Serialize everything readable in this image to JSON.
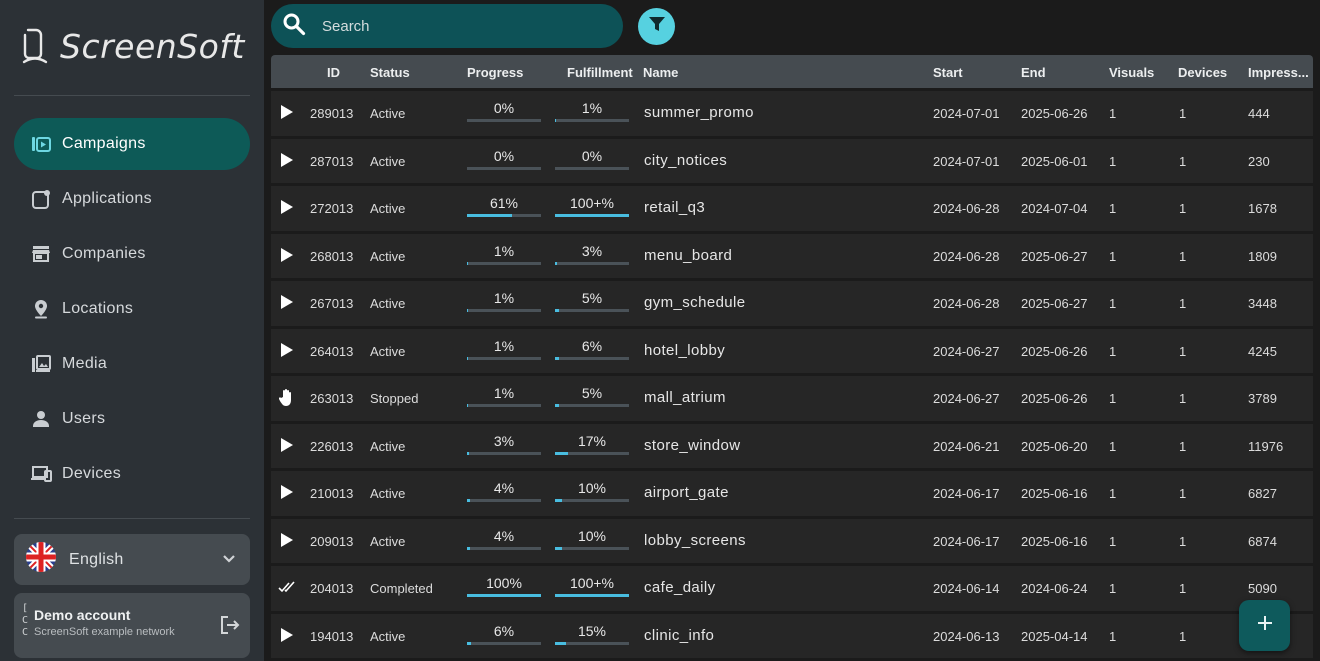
{
  "app": {
    "title": "ScreenSoft"
  },
  "sidebar": {
    "items": [
      {
        "label": "Campaigns",
        "icon": "campaigns-icon",
        "active": true
      },
      {
        "label": "Applications",
        "icon": "applications-icon",
        "active": false
      },
      {
        "label": "Companies",
        "icon": "store-icon",
        "active": false
      },
      {
        "label": "Locations",
        "icon": "location-pin-icon",
        "active": false
      },
      {
        "label": "Media",
        "icon": "media-icon",
        "active": false
      },
      {
        "label": "Users",
        "icon": "person-icon",
        "active": false
      },
      {
        "label": "Devices",
        "icon": "devices-icon",
        "active": false
      }
    ],
    "language": {
      "label": "English",
      "icon": "uk-flag-icon"
    },
    "account": {
      "name": "Demo account",
      "subtitle": "ScreenSoft example network",
      "brackets": "[\nC\nC"
    }
  },
  "search": {
    "placeholder": "Search"
  },
  "table": {
    "columns": [
      "ID",
      "Status",
      "Progress",
      "Fulfillment",
      "Name",
      "Start",
      "End",
      "Visuals",
      "Devices",
      "Impress..."
    ],
    "rows": [
      {
        "action": "play",
        "id": "289013",
        "status": "Active",
        "progress": "0%",
        "progress_value": 0,
        "fulfillment": "1%",
        "fulfillment_value": 1,
        "name": "summer_promo",
        "start": "2024-07-01",
        "end": "2025-06-26",
        "visuals": "1",
        "devices": "1",
        "impressions": "444"
      },
      {
        "action": "play",
        "id": "287013",
        "status": "Active",
        "progress": "0%",
        "progress_value": 0,
        "fulfillment": "0%",
        "fulfillment_value": 0,
        "name": "city_notices",
        "start": "2024-07-01",
        "end": "2025-06-01",
        "visuals": "1",
        "devices": "1",
        "impressions": "230"
      },
      {
        "action": "play",
        "id": "272013",
        "status": "Active",
        "progress": "61%",
        "progress_value": 61,
        "fulfillment": "100+%",
        "fulfillment_value": 100,
        "name": "retail_q3",
        "start": "2024-06-28",
        "end": "2024-07-04",
        "visuals": "1",
        "devices": "1",
        "impressions": "1678"
      },
      {
        "action": "play",
        "id": "268013",
        "status": "Active",
        "progress": "1%",
        "progress_value": 1,
        "fulfillment": "3%",
        "fulfillment_value": 3,
        "name": "menu_board",
        "start": "2024-06-28",
        "end": "2025-06-27",
        "visuals": "1",
        "devices": "1",
        "impressions": "1809"
      },
      {
        "action": "play",
        "id": "267013",
        "status": "Active",
        "progress": "1%",
        "progress_value": 1,
        "fulfillment": "5%",
        "fulfillment_value": 5,
        "name": "gym_schedule",
        "start": "2024-06-28",
        "end": "2025-06-27",
        "visuals": "1",
        "devices": "1",
        "impressions": "3448"
      },
      {
        "action": "play",
        "id": "264013",
        "status": "Active",
        "progress": "1%",
        "progress_value": 1,
        "fulfillment": "6%",
        "fulfillment_value": 6,
        "name": "hotel_lobby",
        "start": "2024-06-27",
        "end": "2025-06-26",
        "visuals": "1",
        "devices": "1",
        "impressions": "4245"
      },
      {
        "action": "stop",
        "id": "263013",
        "status": "Stopped",
        "progress": "1%",
        "progress_value": 1,
        "fulfillment": "5%",
        "fulfillment_value": 5,
        "name": "mall_atrium",
        "start": "2024-06-27",
        "end": "2025-06-26",
        "visuals": "1",
        "devices": "1",
        "impressions": "3789"
      },
      {
        "action": "play",
        "id": "226013",
        "status": "Active",
        "progress": "3%",
        "progress_value": 3,
        "fulfillment": "17%",
        "fulfillment_value": 17,
        "name": "store_window",
        "start": "2024-06-21",
        "end": "2025-06-20",
        "visuals": "1",
        "devices": "1",
        "impressions": "11976"
      },
      {
        "action": "play",
        "id": "210013",
        "status": "Active",
        "progress": "4%",
        "progress_value": 4,
        "fulfillment": "10%",
        "fulfillment_value": 10,
        "name": "airport_gate",
        "start": "2024-06-17",
        "end": "2025-06-16",
        "visuals": "1",
        "devices": "1",
        "impressions": "6827"
      },
      {
        "action": "play",
        "id": "209013",
        "status": "Active",
        "progress": "4%",
        "progress_value": 4,
        "fulfillment": "10%",
        "fulfillment_value": 10,
        "name": "lobby_screens",
        "start": "2024-06-17",
        "end": "2025-06-16",
        "visuals": "1",
        "devices": "1",
        "impressions": "6874"
      },
      {
        "action": "done",
        "id": "204013",
        "status": "Completed",
        "progress": "100%",
        "progress_value": 100,
        "fulfillment": "100+%",
        "fulfillment_value": 100,
        "name": "cafe_daily",
        "start": "2024-06-14",
        "end": "2024-06-24",
        "visuals": "1",
        "devices": "1",
        "impressions": "5090"
      },
      {
        "action": "play",
        "id": "194013",
        "status": "Active",
        "progress": "6%",
        "progress_value": 6,
        "fulfillment": "15%",
        "fulfillment_value": 15,
        "name": "clinic_info",
        "start": "2024-06-13",
        "end": "2025-04-14",
        "visuals": "1",
        "devices": "1",
        "impressions": ""
      }
    ]
  },
  "colors": {
    "accent": "#56d1e0",
    "active_nav": "#0d5a57",
    "progress_fill": "#49bde0"
  }
}
